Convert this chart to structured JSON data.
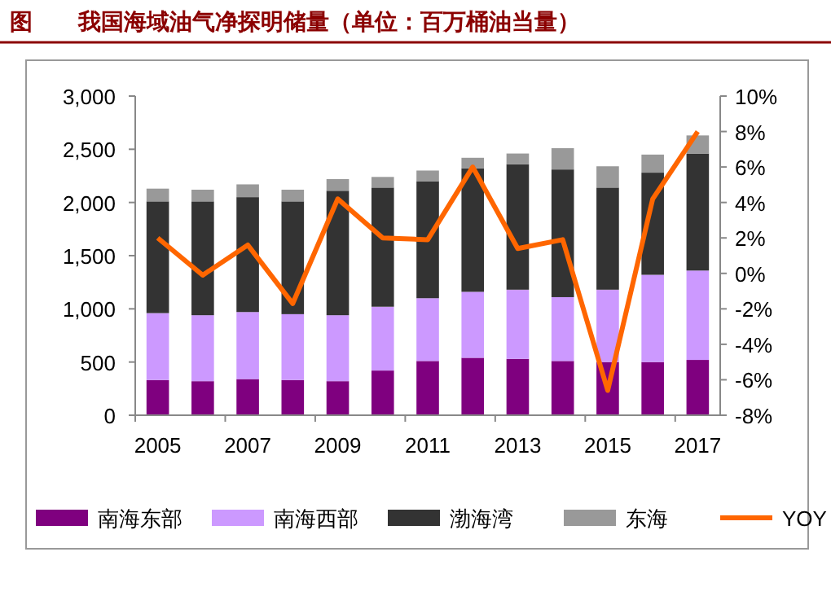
{
  "chart_data": {
    "type": "bar",
    "title": "图　　我国海域油气净探明储量（单位：百万桶油当量）",
    "categories": [
      "2005",
      null,
      "2007",
      null,
      "2009",
      null,
      "2011",
      null,
      "2013",
      null,
      "2015",
      null,
      "2017"
    ],
    "stacked": true,
    "legend": "bottom",
    "series": [
      {
        "name": "南海东部",
        "color": "#7f007f",
        "values": [
          330,
          320,
          340,
          330,
          320,
          420,
          510,
          540,
          530,
          510,
          500,
          500,
          520
        ]
      },
      {
        "name": "南海西部",
        "color": "#cc99ff",
        "values": [
          630,
          620,
          630,
          620,
          620,
          600,
          590,
          620,
          650,
          600,
          680,
          820,
          840
        ]
      },
      {
        "name": "渤海湾",
        "color": "#333333",
        "values": [
          1050,
          1070,
          1080,
          1060,
          1170,
          1120,
          1100,
          1160,
          1180,
          1200,
          960,
          960,
          1100
        ]
      },
      {
        "name": "东海",
        "color": "#999999",
        "values": [
          120,
          110,
          120,
          110,
          110,
          100,
          100,
          100,
          100,
          200,
          200,
          170,
          170
        ]
      },
      {
        "name": "YOY",
        "type": "line",
        "axis": "y2",
        "color": "#ff6600",
        "values": [
          2.0,
          -0.1,
          1.6,
          -1.7,
          4.2,
          2.0,
          1.9,
          6.0,
          1.4,
          1.9,
          -6.6,
          4.2,
          8.0
        ]
      }
    ],
    "ylim": [
      0,
      3000
    ],
    "yticks": [
      0,
      500,
      {
        "value": 1000,
        "label": "1,000"
      },
      {
        "value": 1500,
        "label": "1,500"
      },
      {
        "value": 2000,
        "label": "2,000"
      },
      {
        "value": 2500,
        "label": "2,500"
      },
      {
        "value": 3000,
        "label": "3,000"
      }
    ],
    "y2lim": [
      -8,
      10
    ],
    "y2ticks": [
      {
        "value": -8,
        "label": "-8%"
      },
      {
        "value": -6,
        "label": "-6%"
      },
      {
        "value": -4,
        "label": "-4%"
      },
      {
        "value": -2,
        "label": "-2%"
      },
      {
        "value": 0,
        "label": "0%"
      },
      {
        "value": 2,
        "label": "2%"
      },
      {
        "value": 4,
        "label": "4%"
      },
      {
        "value": 6,
        "label": "6%"
      },
      {
        "value": 8,
        "label": "8%"
      },
      {
        "value": 10,
        "label": "10%"
      }
    ]
  }
}
